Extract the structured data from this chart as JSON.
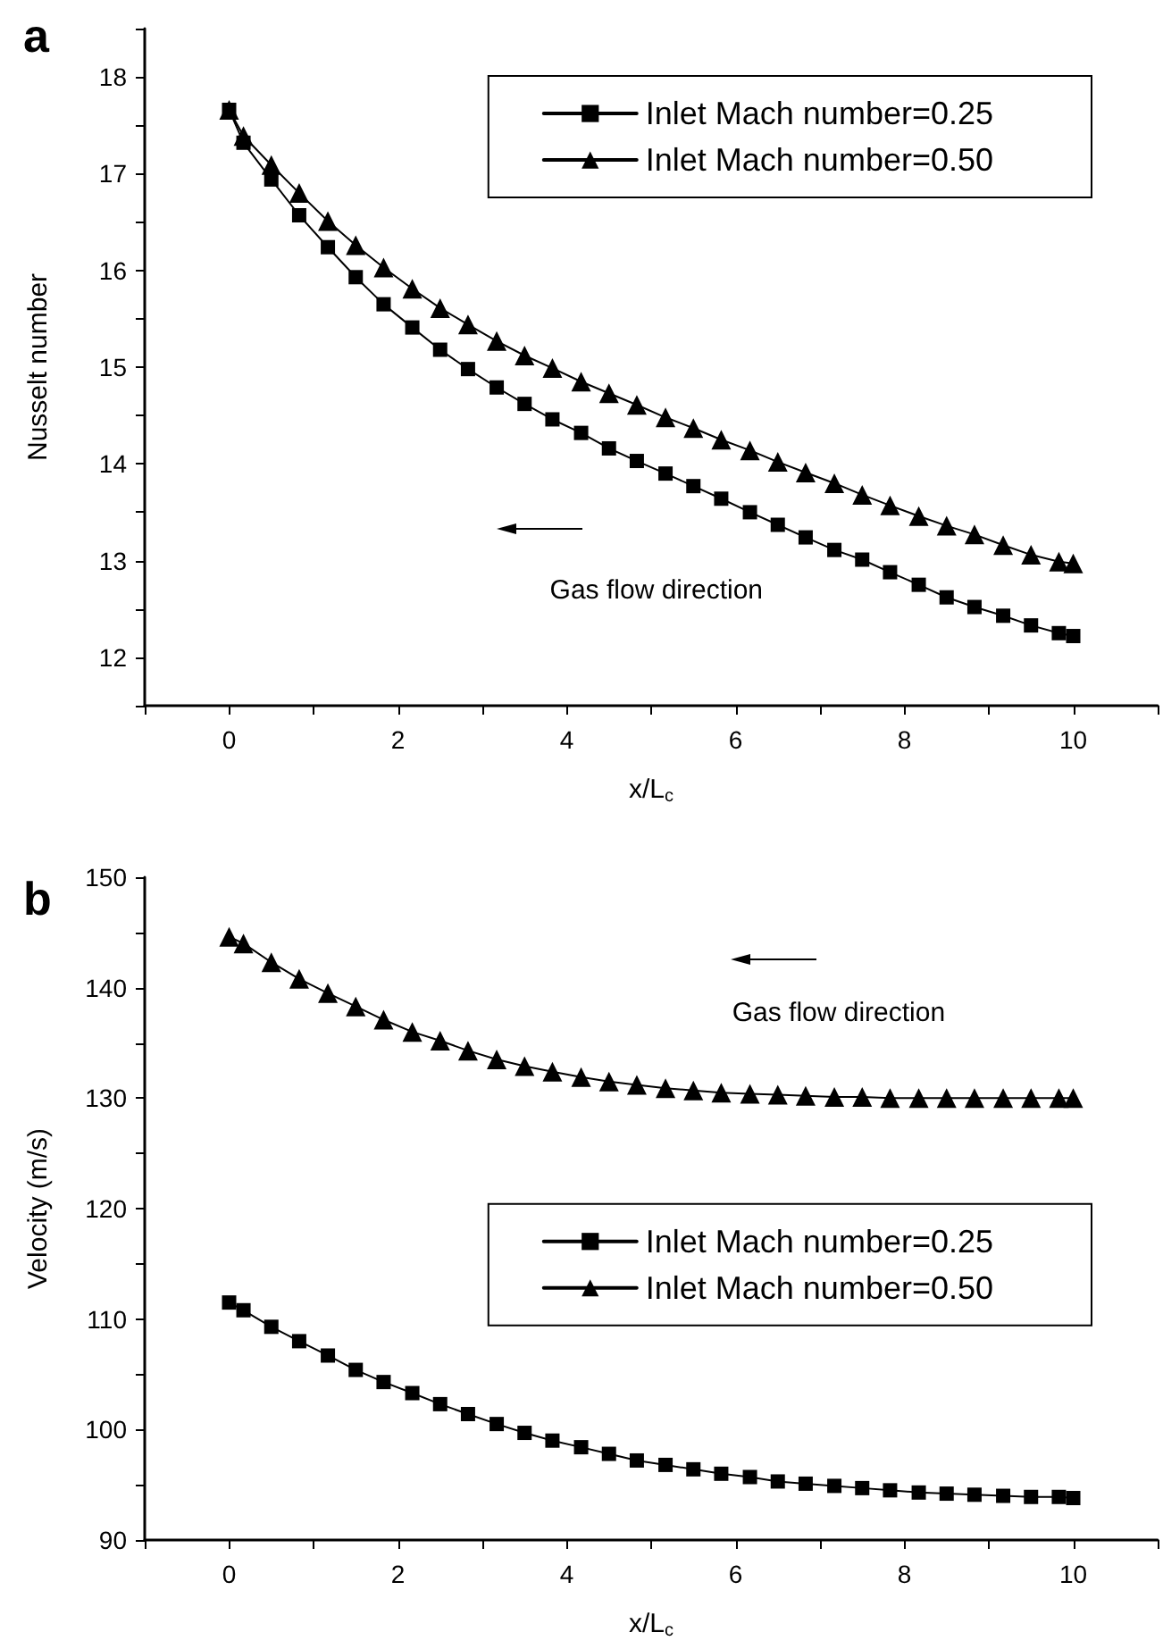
{
  "chart_data": [
    {
      "type": "line",
      "title": "a",
      "xlabel": "x/L$_{c}$",
      "ylabel": "Nusselt number",
      "x": [
        0,
        0.17,
        0.5,
        0.83,
        1.17,
        1.5,
        1.83,
        2.17,
        2.5,
        2.83,
        3.17,
        3.5,
        3.83,
        4.17,
        4.5,
        4.83,
        5.17,
        5.5,
        5.83,
        6.17,
        6.5,
        6.83,
        7.17,
        7.5,
        7.83,
        8.17,
        8.5,
        8.83,
        9.17,
        9.5,
        9.83,
        10
      ],
      "series": [
        {
          "name": "Inlet Mach number=0.25",
          "color": "#000000",
          "marker": "square",
          "values": [
            17.66,
            17.32,
            16.94,
            16.57,
            16.24,
            15.93,
            15.65,
            15.41,
            15.18,
            14.98,
            14.79,
            14.62,
            14.46,
            14.32,
            14.16,
            14.03,
            13.9,
            13.77,
            13.64,
            13.5,
            13.37,
            13.24,
            13.11,
            13.01,
            12.88,
            12.75,
            12.62,
            12.52,
            12.43,
            12.33,
            12.25,
            12.22
          ]
        },
        {
          "name": "Inlet Mach number=0.50",
          "color": "#000000",
          "marker": "triangle",
          "values": [
            17.66,
            17.39,
            17.09,
            16.8,
            16.51,
            16.26,
            16.03,
            15.81,
            15.61,
            15.44,
            15.27,
            15.12,
            14.99,
            14.85,
            14.73,
            14.61,
            14.48,
            14.37,
            14.25,
            14.14,
            14.02,
            13.91,
            13.8,
            13.68,
            13.57,
            13.46,
            13.36,
            13.27,
            13.16,
            13.06,
            12.99,
            12.97
          ]
        }
      ],
      "xlim": [
        -1,
        11
      ],
      "xticks": [
        {
          "value": -1,
          "label": null
        },
        0,
        {
          "value": 1,
          "label": null
        },
        2,
        {
          "value": 3,
          "label": null
        },
        4,
        {
          "value": 5,
          "label": null
        },
        6,
        {
          "value": 7,
          "label": null
        },
        8,
        {
          "value": 9,
          "label": null
        },
        10,
        {
          "value": 11,
          "label": null
        }
      ],
      "ylim": [
        11.5,
        18.5
      ],
      "yticks": [
        {
          "value": 11.5,
          "label": null
        },
        12,
        {
          "value": 12.5,
          "label": null
        },
        13,
        {
          "value": 13.5,
          "label": null
        },
        14,
        {
          "value": 14.5,
          "label": null
        },
        15,
        {
          "value": 15.5,
          "label": null
        },
        16,
        {
          "value": 16.5,
          "label": null
        },
        17,
        {
          "value": 17.5,
          "label": null
        },
        18,
        {
          "value": 18.5,
          "label": null
        }
      ],
      "annotations": [
        "Gas flow direction"
      ],
      "grid": false,
      "legend": "top right",
      "line_style": "solid"
    },
    {
      "type": "line",
      "title": "b",
      "xlabel": "x/L$_{c}$",
      "ylabel": "Velocity (m/s)",
      "x": [
        0,
        0.17,
        0.5,
        0.83,
        1.17,
        1.5,
        1.83,
        2.17,
        2.5,
        2.83,
        3.17,
        3.5,
        3.83,
        4.17,
        4.5,
        4.83,
        5.17,
        5.5,
        5.83,
        6.17,
        6.5,
        6.83,
        7.17,
        7.5,
        7.83,
        8.17,
        8.5,
        8.83,
        9.17,
        9.5,
        9.83,
        10
      ],
      "series": [
        {
          "name": "Inlet Mach number=0.25",
          "color": "#000000",
          "marker": "square",
          "values": [
            111.5,
            110.8,
            109.3,
            108.0,
            106.7,
            105.4,
            104.3,
            103.3,
            102.3,
            101.4,
            100.5,
            99.7,
            99.0,
            98.4,
            97.8,
            97.2,
            96.8,
            96.4,
            96.0,
            95.7,
            95.3,
            95.1,
            94.9,
            94.7,
            94.5,
            94.3,
            94.2,
            94.1,
            94.0,
            93.9,
            93.9,
            93.8
          ]
        },
        {
          "name": "Inlet Mach number=0.50",
          "color": "#000000",
          "marker": "triangle",
          "values": [
            144.6,
            144.0,
            142.3,
            140.8,
            139.5,
            138.3,
            137.1,
            136.0,
            135.2,
            134.3,
            133.5,
            132.9,
            132.4,
            131.9,
            131.5,
            131.2,
            130.9,
            130.7,
            130.5,
            130.4,
            130.3,
            130.2,
            130.1,
            130.1,
            130.0,
            130.0,
            130.0,
            130.0,
            130.0,
            130.0,
            130.0,
            130.0
          ]
        }
      ],
      "xlim": [
        -1,
        11
      ],
      "xticks": [
        {
          "value": -1,
          "label": null
        },
        0,
        {
          "value": 1,
          "label": null
        },
        2,
        {
          "value": 3,
          "label": null
        },
        4,
        {
          "value": 5,
          "label": null
        },
        6,
        {
          "value": 7,
          "label": null
        },
        8,
        {
          "value": 9,
          "label": null
        },
        10,
        {
          "value": 11,
          "label": null
        }
      ],
      "ylim": [
        90,
        150
      ],
      "yticks": [
        90,
        {
          "value": 95,
          "label": null
        },
        100,
        {
          "value": 105,
          "label": null
        },
        110,
        {
          "value": 115,
          "label": null
        },
        120,
        {
          "value": 125,
          "label": null
        },
        130,
        {
          "value": 135,
          "label": null
        },
        140,
        {
          "value": 145,
          "label": null
        },
        150
      ],
      "annotations": [
        "Gas flow direction"
      ],
      "grid": false,
      "legend": "right",
      "line_style": "solid"
    }
  ]
}
